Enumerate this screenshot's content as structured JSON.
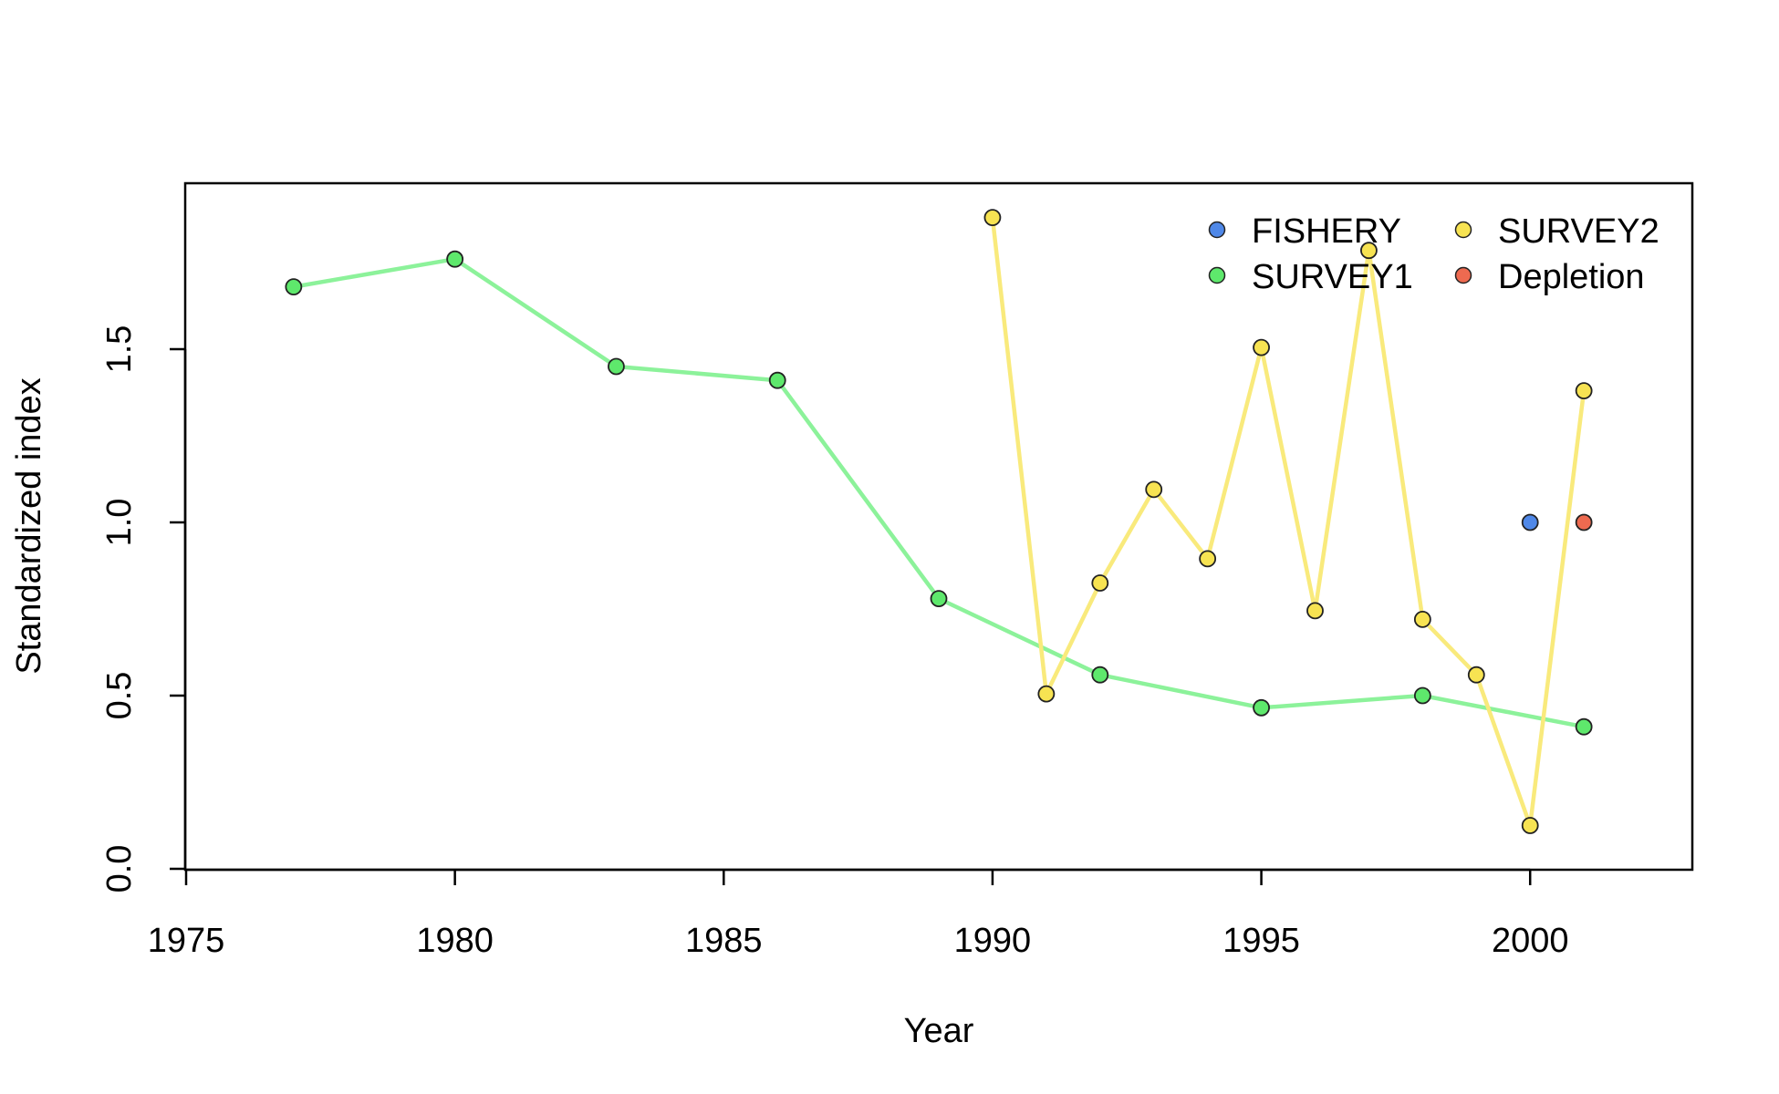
{
  "chart_data": {
    "type": "line",
    "title": "",
    "xlabel": "Year",
    "ylabel": "Standardized index",
    "xlim": [
      1975,
      2003
    ],
    "ylim": [
      0,
      1.98
    ],
    "xticks": [
      1975,
      1980,
      1985,
      1990,
      1995,
      2000
    ],
    "yticks": [
      0.0,
      0.5,
      1.0,
      1.5
    ],
    "ytick_labels": [
      "0.0",
      "0.5",
      "1.0",
      "1.5"
    ],
    "grid": false,
    "legend_position": "top-right",
    "series": [
      {
        "name": "FISHERY",
        "color": "#4f88e8",
        "line": false,
        "x": [
          2000
        ],
        "y": [
          1.0
        ]
      },
      {
        "name": "SURVEY1",
        "color": "#5ee86c",
        "line_color": "#8cf29a",
        "line": true,
        "x": [
          1977,
          1980,
          1983,
          1986,
          1989,
          1992,
          1995,
          1998,
          2001
        ],
        "y": [
          1.68,
          1.76,
          1.45,
          1.41,
          0.78,
          0.56,
          0.465,
          0.5,
          0.41
        ]
      },
      {
        "name": "SURVEY2",
        "color": "#f7e352",
        "line_color": "#f9ea7c",
        "line": true,
        "x": [
          1990,
          1991,
          1992,
          1993,
          1994,
          1995,
          1996,
          1997,
          1998,
          1999,
          2000,
          2001
        ],
        "y": [
          1.88,
          0.505,
          0.825,
          1.095,
          0.895,
          1.505,
          0.745,
          1.785,
          0.72,
          0.56,
          0.125,
          1.38
        ]
      },
      {
        "name": "Depletion",
        "color": "#ee6a50",
        "line": false,
        "x": [
          2001
        ],
        "y": [
          1.0
        ]
      }
    ]
  }
}
